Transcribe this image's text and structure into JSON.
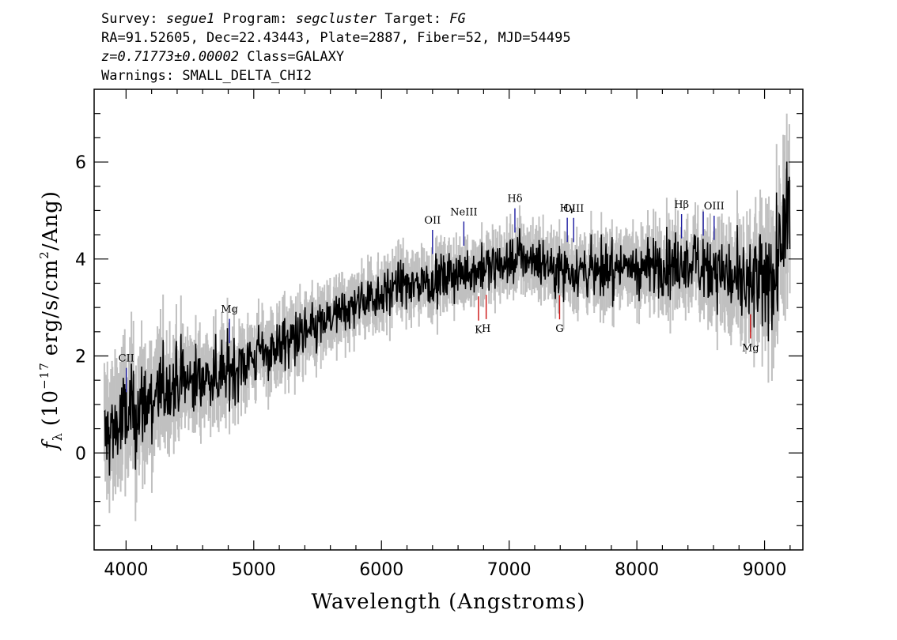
{
  "header": {
    "line1": {
      "survey_label": "Survey:",
      "survey": "segue1",
      "program_label": "Program:",
      "program": "segcluster",
      "target_label": "Target:",
      "target": "FG"
    },
    "line2": "RA=91.52605, Dec=22.43443, Plate=2887, Fiber=52, MJD=54495",
    "line3": {
      "z": "z=0.71773±0.00002",
      "class": "Class=GALAXY"
    },
    "line4": "Warnings: SMALL_DELTA_CHI2"
  },
  "chart_data": {
    "type": "line",
    "xlabel": "Wavelength (Angstroms)",
    "ylabel_main": "f",
    "ylabel_sub": "λ",
    "ylabel_rest": "(10",
    "ylabel_exp": "−17",
    "ylabel_units": "erg/s/cm",
    "ylabel_sq": "2",
    "ylabel_end": "/Ang)",
    "xlim": [
      3750,
      9300
    ],
    "ylim": [
      -2.0,
      7.5
    ],
    "x_ticks": [
      4000,
      5000,
      6000,
      7000,
      8000,
      9000
    ],
    "y_ticks": [
      0,
      2,
      4,
      6
    ],
    "x_ticks_labels": [
      "4000",
      "5000",
      "6000",
      "7000",
      "8000",
      "9000"
    ],
    "y_ticks_labels": [
      "0",
      "2",
      "4",
      "6"
    ],
    "series": [
      {
        "role": "flux",
        "color": "#000000",
        "x": [
          3830,
          3900,
          4000,
          4100,
          4200,
          4300,
          4400,
          4500,
          4600,
          4700,
          4800,
          4900,
          5000,
          5100,
          5200,
          5300,
          5400,
          5500,
          5600,
          5700,
          5800,
          5900,
          6000,
          6100,
          6200,
          6300,
          6400,
          6500,
          6600,
          6700,
          6800,
          6900,
          7000,
          7100,
          7200,
          7300,
          7400,
          7500,
          7600,
          7700,
          7800,
          7900,
          8000,
          8100,
          8200,
          8300,
          8400,
          8500,
          8600,
          8700,
          8800,
          8900,
          9000,
          9100,
          9200
        ],
        "y": [
          0.3,
          0.5,
          0.7,
          0.9,
          1.1,
          1.3,
          1.45,
          1.5,
          1.55,
          1.6,
          1.7,
          1.85,
          1.95,
          2.1,
          2.2,
          2.35,
          2.45,
          2.6,
          2.75,
          2.9,
          3.05,
          3.2,
          3.3,
          3.4,
          3.45,
          3.5,
          3.55,
          3.6,
          3.7,
          3.75,
          3.8,
          3.85,
          3.95,
          4.05,
          4.0,
          3.9,
          3.8,
          3.8,
          3.75,
          3.75,
          3.8,
          3.85,
          3.8,
          3.85,
          3.9,
          3.85,
          3.9,
          3.95,
          3.85,
          3.7,
          3.5,
          3.4,
          3.5,
          3.8,
          4.9
        ]
      },
      {
        "role": "error",
        "color": "#c0c0c0",
        "x": [
          3830,
          4000,
          4500,
          5000,
          5500,
          6000,
          6500,
          7000,
          7500,
          8000,
          8500,
          9000,
          9200
        ],
        "y": [
          1.0,
          1.0,
          0.7,
          0.55,
          0.5,
          0.45,
          0.45,
          0.45,
          0.5,
          0.55,
          0.65,
          0.9,
          1.2
        ]
      }
    ],
    "emission_lines": [
      {
        "label": "CII",
        "x": 4002,
        "color": "#1a1aa0"
      },
      {
        "label": "Mg",
        "x": 4810,
        "color": "#1a1aa0"
      },
      {
        "label": "OII",
        "x": 6400,
        "color": "#1a1aa0"
      },
      {
        "label": "NeIII",
        "x": 6645,
        "color": "#1a1aa0"
      },
      {
        "label": "Hδ",
        "x": 7045,
        "color": "#1a1aa0"
      },
      {
        "label": "Hγ",
        "x": 7455,
        "color": "#1a1aa0"
      },
      {
        "label": "OIII",
        "x": 7505,
        "color": "#1a1aa0"
      },
      {
        "label": "Hβ",
        "x": 8350,
        "color": "#1a1aa0"
      },
      {
        "label": "",
        "x": 8520,
        "color": "#1a1aa0"
      },
      {
        "label": "OIII",
        "x": 8605,
        "color": "#1a1aa0"
      }
    ],
    "absorption_lines": [
      {
        "label": "K",
        "x": 6760,
        "color": "#cc1010"
      },
      {
        "label": "H",
        "x": 6820,
        "color": "#cc1010"
      },
      {
        "label": "G",
        "x": 7395,
        "color": "#cc1010"
      },
      {
        "label": "Mg",
        "x": 8890,
        "color": "#cc1010"
      }
    ],
    "grid": false,
    "legend": "none"
  }
}
